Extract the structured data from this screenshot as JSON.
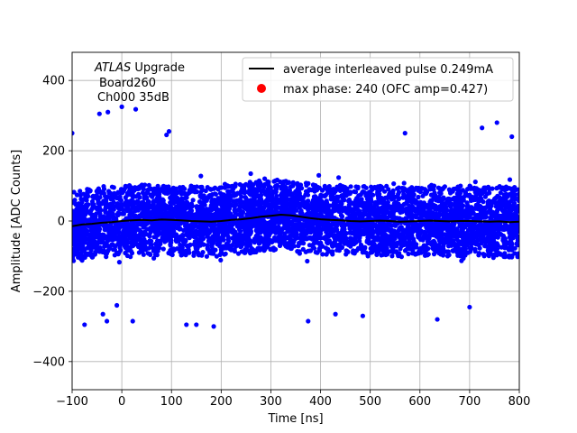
{
  "chart_data": {
    "type": "scatter",
    "xlabel": "Time [ns]",
    "ylabel": "Amplitude [ADC Counts]",
    "xlim": [
      -100,
      800
    ],
    "ylim": [
      -480,
      480
    ],
    "xticks": [
      -100,
      0,
      100,
      200,
      300,
      400,
      500,
      600,
      700,
      800
    ],
    "yticks": [
      -400,
      -200,
      0,
      200,
      400
    ],
    "grid": true,
    "legend_position": "top-right",
    "annotation": {
      "italic_part": "ATLAS",
      "rest_part": " Upgrade",
      "line2": "Board260",
      "line3": "Ch000 35dB"
    },
    "series": [
      {
        "name": "average interleaved pulse 0.249mA",
        "kind": "line",
        "color": "#000000",
        "x": [
          -100,
          -80,
          -60,
          -40,
          -20,
          0,
          20,
          40,
          60,
          80,
          100,
          120,
          140,
          160,
          180,
          200,
          220,
          240,
          260,
          280,
          300,
          320,
          340,
          360,
          380,
          400,
          420,
          440,
          460,
          480,
          500,
          520,
          540,
          560,
          580,
          600,
          620,
          640,
          660,
          680,
          700,
          720,
          740,
          760,
          780,
          800
        ],
        "y": [
          -15,
          -10,
          -8,
          -5,
          -3,
          0,
          2,
          3,
          2,
          4,
          3,
          2,
          0,
          -1,
          -2,
          0,
          3,
          5,
          8,
          12,
          15,
          18,
          16,
          12,
          8,
          5,
          3,
          2,
          0,
          -1,
          0,
          1,
          0,
          -2,
          -1,
          0,
          1,
          0,
          -1,
          0,
          0,
          -1,
          -2,
          -1,
          -3,
          -2
        ]
      },
      {
        "name": "max phase: 240 (OFC amp=0.427)",
        "kind": "marker",
        "color": "#ff0000",
        "x": [
          240
        ],
        "y": [
          0.427
        ]
      },
      {
        "name": "samples",
        "kind": "scatter",
        "color": "#0000ff",
        "x_range": [
          -100,
          800
        ],
        "band_halfwidth": 100,
        "y_std": 60,
        "outliers": [
          [
            -100,
            250
          ],
          [
            -28,
            310
          ],
          [
            -45,
            305
          ],
          [
            0,
            325
          ],
          [
            28,
            318
          ],
          [
            -75,
            -295
          ],
          [
            -38,
            -265
          ],
          [
            -30,
            -285
          ],
          [
            22,
            -285
          ],
          [
            150,
            -295
          ],
          [
            130,
            -295
          ],
          [
            185,
            -300
          ],
          [
            375,
            -285
          ],
          [
            430,
            -265
          ],
          [
            485,
            -270
          ],
          [
            635,
            -280
          ],
          [
            755,
            280
          ],
          [
            725,
            265
          ],
          [
            570,
            250
          ],
          [
            785,
            240
          ],
          [
            95,
            255
          ],
          [
            90,
            245
          ],
          [
            -10,
            -240
          ],
          [
            700,
            -245
          ]
        ]
      }
    ]
  }
}
